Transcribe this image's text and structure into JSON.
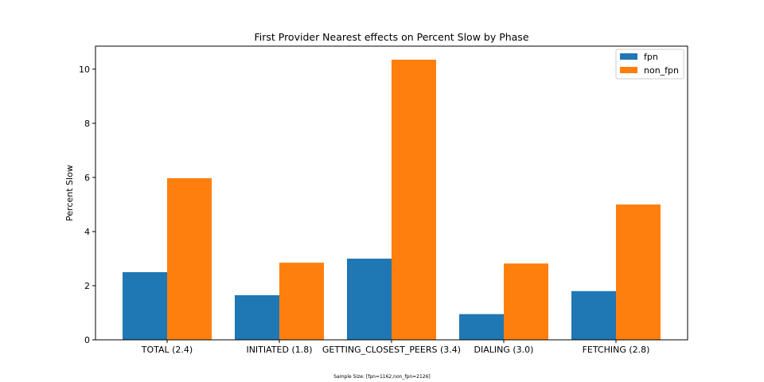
{
  "chart_data": {
    "type": "bar",
    "title": "First Provider Nearest effects on Percent Slow by Phase",
    "xlabel": "",
    "ylabel": "Percent Slow",
    "categories": [
      "TOTAL (2.4)",
      "INITIATED (1.8)",
      "GETTING_CLOSEST_PEERS (3.4)",
      "DIALING (3.0)",
      "FETCHING (2.8)"
    ],
    "series": [
      {
        "name": "fpn",
        "color": "#1f77b4",
        "values": [
          2.5,
          1.65,
          3.0,
          0.95,
          1.8
        ]
      },
      {
        "name": "non_fpn",
        "color": "#ff7f0e",
        "values": [
          5.97,
          2.85,
          10.35,
          2.82,
          5.0
        ]
      }
    ],
    "ylim": [
      0,
      10.85
    ],
    "yticks": [
      0,
      2,
      4,
      6,
      8,
      10
    ],
    "legend_position": "top-right",
    "grid": false,
    "footnote": "Sample Size: [fpn=1162,non_fpn=2126]"
  }
}
